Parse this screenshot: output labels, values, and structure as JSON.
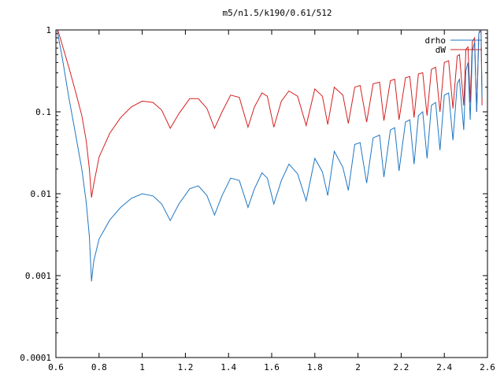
{
  "chart_data": {
    "type": "line",
    "title": "m5/n1.5/k190/0.61/512",
    "xlabel": "",
    "ylabel": "",
    "xlim": [
      0.6,
      2.6
    ],
    "ylim": [
      0.0001,
      1
    ],
    "yscale": "log",
    "grid": false,
    "legend_position": "top-right",
    "x_ticks": [
      0.6,
      0.8,
      1,
      1.2,
      1.4,
      1.6,
      1.8,
      2,
      2.2,
      2.4,
      2.6
    ],
    "x_tick_labels": [
      "0.6",
      "0.8",
      "1",
      "1.2",
      "1.4",
      "1.6",
      "1.8",
      "2",
      "2.2",
      "2.4",
      "2.6"
    ],
    "y_ticks": [
      0.0001,
      0.001,
      0.01,
      0.1,
      1
    ],
    "y_tick_labels": [
      "0.0001",
      "0.001",
      "0.01",
      "0.1",
      "1"
    ],
    "series": [
      {
        "name": "drho",
        "color": "#1f77c4",
        "points": [
          [
            0.6,
            1.2
          ],
          [
            0.63,
            0.45
          ],
          [
            0.66,
            0.15
          ],
          [
            0.69,
            0.055
          ],
          [
            0.72,
            0.02
          ],
          [
            0.74,
            0.008
          ],
          [
            0.755,
            0.003
          ],
          [
            0.765,
            0.00085
          ],
          [
            0.775,
            0.0015
          ],
          [
            0.8,
            0.0028
          ],
          [
            0.85,
            0.0048
          ],
          [
            0.9,
            0.0068
          ],
          [
            0.95,
            0.0088
          ],
          [
            1.0,
            0.01
          ],
          [
            1.05,
            0.0094
          ],
          [
            1.09,
            0.0075
          ],
          [
            1.13,
            0.0047
          ],
          [
            1.17,
            0.0075
          ],
          [
            1.22,
            0.0115
          ],
          [
            1.26,
            0.0125
          ],
          [
            1.3,
            0.0095
          ],
          [
            1.335,
            0.0055
          ],
          [
            1.37,
            0.0095
          ],
          [
            1.41,
            0.0155
          ],
          [
            1.45,
            0.0145
          ],
          [
            1.49,
            0.0068
          ],
          [
            1.52,
            0.0115
          ],
          [
            1.555,
            0.018
          ],
          [
            1.58,
            0.0155
          ],
          [
            1.61,
            0.0075
          ],
          [
            1.645,
            0.0145
          ],
          [
            1.68,
            0.023
          ],
          [
            1.72,
            0.0175
          ],
          [
            1.76,
            0.0082
          ],
          [
            1.8,
            0.027
          ],
          [
            1.835,
            0.0185
          ],
          [
            1.86,
            0.0095
          ],
          [
            1.89,
            0.033
          ],
          [
            1.93,
            0.021
          ],
          [
            1.955,
            0.011
          ],
          [
            1.985,
            0.04
          ],
          [
            2.01,
            0.042
          ],
          [
            2.04,
            0.0135
          ],
          [
            2.07,
            0.048
          ],
          [
            2.1,
            0.052
          ],
          [
            2.12,
            0.016
          ],
          [
            2.15,
            0.06
          ],
          [
            2.17,
            0.064
          ],
          [
            2.19,
            0.019
          ],
          [
            2.22,
            0.075
          ],
          [
            2.24,
            0.08
          ],
          [
            2.26,
            0.023
          ],
          [
            2.28,
            0.09
          ],
          [
            2.3,
            0.1
          ],
          [
            2.32,
            0.027
          ],
          [
            2.34,
            0.12
          ],
          [
            2.36,
            0.13
          ],
          [
            2.38,
            0.034
          ],
          [
            2.4,
            0.16
          ],
          [
            2.42,
            0.17
          ],
          [
            2.44,
            0.045
          ],
          [
            2.46,
            0.22
          ],
          [
            2.47,
            0.25
          ],
          [
            2.49,
            0.06
          ],
          [
            2.5,
            0.32
          ],
          [
            2.51,
            0.4
          ],
          [
            2.52,
            0.08
          ],
          [
            2.53,
            0.55
          ],
          [
            2.54,
            0.7
          ],
          [
            2.55,
            0.1
          ],
          [
            2.56,
            0.9
          ],
          [
            2.57,
            1.1
          ],
          [
            2.575,
            0.15
          ]
        ]
      },
      {
        "name": "dW",
        "color": "#d42020",
        "points": [
          [
            0.6,
            1.2
          ],
          [
            0.63,
            0.65
          ],
          [
            0.66,
            0.35
          ],
          [
            0.69,
            0.18
          ],
          [
            0.72,
            0.09
          ],
          [
            0.74,
            0.045
          ],
          [
            0.755,
            0.02
          ],
          [
            0.765,
            0.009
          ],
          [
            0.775,
            0.013
          ],
          [
            0.8,
            0.028
          ],
          [
            0.85,
            0.055
          ],
          [
            0.9,
            0.085
          ],
          [
            0.95,
            0.115
          ],
          [
            1.0,
            0.135
          ],
          [
            1.05,
            0.13
          ],
          [
            1.09,
            0.105
          ],
          [
            1.13,
            0.063
          ],
          [
            1.17,
            0.095
          ],
          [
            1.22,
            0.145
          ],
          [
            1.26,
            0.145
          ],
          [
            1.3,
            0.11
          ],
          [
            1.335,
            0.063
          ],
          [
            1.37,
            0.1
          ],
          [
            1.41,
            0.16
          ],
          [
            1.45,
            0.15
          ],
          [
            1.49,
            0.065
          ],
          [
            1.52,
            0.115
          ],
          [
            1.555,
            0.17
          ],
          [
            1.58,
            0.155
          ],
          [
            1.61,
            0.065
          ],
          [
            1.645,
            0.135
          ],
          [
            1.68,
            0.18
          ],
          [
            1.72,
            0.155
          ],
          [
            1.76,
            0.068
          ],
          [
            1.8,
            0.19
          ],
          [
            1.835,
            0.155
          ],
          [
            1.86,
            0.07
          ],
          [
            1.89,
            0.2
          ],
          [
            1.93,
            0.16
          ],
          [
            1.955,
            0.072
          ],
          [
            1.985,
            0.2
          ],
          [
            2.01,
            0.21
          ],
          [
            2.04,
            0.075
          ],
          [
            2.07,
            0.22
          ],
          [
            2.1,
            0.23
          ],
          [
            2.12,
            0.078
          ],
          [
            2.15,
            0.24
          ],
          [
            2.17,
            0.25
          ],
          [
            2.19,
            0.08
          ],
          [
            2.22,
            0.26
          ],
          [
            2.24,
            0.27
          ],
          [
            2.26,
            0.085
          ],
          [
            2.28,
            0.29
          ],
          [
            2.3,
            0.3
          ],
          [
            2.32,
            0.09
          ],
          [
            2.34,
            0.33
          ],
          [
            2.36,
            0.35
          ],
          [
            2.38,
            0.1
          ],
          [
            2.4,
            0.4
          ],
          [
            2.42,
            0.42
          ],
          [
            2.44,
            0.11
          ],
          [
            2.46,
            0.48
          ],
          [
            2.47,
            0.5
          ],
          [
            2.49,
            0.12
          ],
          [
            2.5,
            0.58
          ],
          [
            2.51,
            0.62
          ],
          [
            2.52,
            0.13
          ],
          [
            2.53,
            0.72
          ],
          [
            2.54,
            0.8
          ],
          [
            2.55,
            0.1
          ],
          [
            2.56,
            0.9
          ],
          [
            2.57,
            1.0
          ],
          [
            2.575,
            0.12
          ]
        ]
      }
    ]
  }
}
